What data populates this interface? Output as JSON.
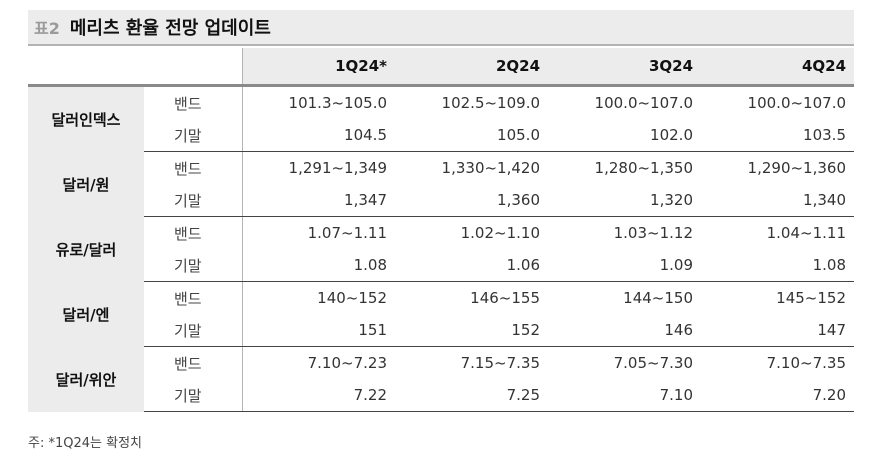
{
  "title": {
    "tag": "표2",
    "text": "메리츠 환율 전망 업데이트"
  },
  "header": {
    "quarters": [
      "1Q24*",
      "2Q24",
      "3Q24",
      "4Q24"
    ]
  },
  "rows": [
    {
      "currency": "달러인덱스",
      "band": {
        "label": "밴드",
        "values": [
          "101.3~105.0",
          "102.5~109.0",
          "100.0~107.0",
          "100.0~107.0"
        ]
      },
      "end": {
        "label": "기말",
        "values": [
          "104.5",
          "105.0",
          "102.0",
          "103.5"
        ]
      }
    },
    {
      "currency": "달러/원",
      "band": {
        "label": "밴드",
        "values": [
          "1,291~1,349",
          "1,330~1,420",
          "1,280~1,350",
          "1,290~1,360"
        ]
      },
      "end": {
        "label": "기말",
        "values": [
          "1,347",
          "1,360",
          "1,320",
          "1,340"
        ]
      }
    },
    {
      "currency": "유로/달러",
      "band": {
        "label": "밴드",
        "values": [
          "1.07~1.11",
          "1.02~1.10",
          "1.03~1.12",
          "1.04~1.11"
        ]
      },
      "end": {
        "label": "기말",
        "values": [
          "1.08",
          "1.06",
          "1.09",
          "1.08"
        ]
      }
    },
    {
      "currency": "달러/엔",
      "band": {
        "label": "밴드",
        "values": [
          "140~152",
          "146~155",
          "144~150",
          "145~152"
        ]
      },
      "end": {
        "label": "기말",
        "values": [
          "151",
          "152",
          "146",
          "147"
        ]
      }
    },
    {
      "currency": "달러/위안",
      "band": {
        "label": "밴드",
        "values": [
          "7.10~7.23",
          "7.15~7.35",
          "7.05~7.30",
          "7.10~7.35"
        ]
      },
      "end": {
        "label": "기말",
        "values": [
          "7.22",
          "7.25",
          "7.10",
          "7.20"
        ]
      }
    }
  ],
  "note": "주: *1Q24는 확정치"
}
